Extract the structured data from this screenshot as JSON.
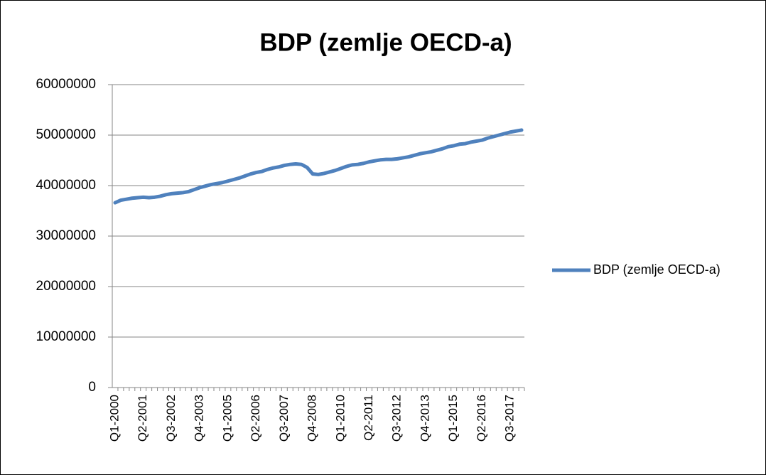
{
  "chart_data": {
    "type": "line",
    "title": "BDP (zemlje OECD-a)",
    "categories": [
      "Q1-2000",
      null,
      null,
      null,
      null,
      "Q2-2001",
      null,
      null,
      null,
      null,
      "Q3-2002",
      null,
      null,
      null,
      null,
      "Q4-2003",
      null,
      null,
      null,
      null,
      "Q1-2005",
      null,
      null,
      null,
      null,
      "Q2-2006",
      null,
      null,
      null,
      null,
      "Q3-2007",
      null,
      null,
      null,
      null,
      "Q4-2008",
      null,
      null,
      null,
      null,
      "Q1-2010",
      null,
      null,
      null,
      null,
      "Q2-2011",
      null,
      null,
      null,
      null,
      "Q3-2012",
      null,
      null,
      null,
      null,
      "Q4-2013",
      null,
      null,
      null,
      null,
      "Q1-2015",
      null,
      null,
      null,
      null,
      "Q2-2016",
      null,
      null,
      null,
      null,
      "Q3-2017",
      null,
      null
    ],
    "series": [
      {
        "name": "BDP (zemlje OECD-a)",
        "color": "#4f81bd",
        "values": [
          36600000,
          37100000,
          37300000,
          37500000,
          37600000,
          37700000,
          37600000,
          37700000,
          37900000,
          38200000,
          38400000,
          38500000,
          38600000,
          38800000,
          39200000,
          39600000,
          39900000,
          40200000,
          40400000,
          40600000,
          40900000,
          41200000,
          41500000,
          41900000,
          42300000,
          42600000,
          42800000,
          43200000,
          43500000,
          43700000,
          44000000,
          44200000,
          44300000,
          44200000,
          43600000,
          42300000,
          42200000,
          42400000,
          42700000,
          43000000,
          43400000,
          43800000,
          44100000,
          44200000,
          44400000,
          44700000,
          44900000,
          45100000,
          45200000,
          45200000,
          45300000,
          45500000,
          45700000,
          46000000,
          46300000,
          46500000,
          46700000,
          47000000,
          47300000,
          47700000,
          47900000,
          48200000,
          48300000,
          48600000,
          48800000,
          49000000,
          49400000,
          49700000,
          50000000,
          50300000,
          50600000,
          50800000,
          51000000
        ]
      }
    ],
    "ylim": [
      0,
      60000000
    ],
    "yticks": [
      0,
      10000000,
      20000000,
      30000000,
      40000000,
      50000000,
      60000000
    ],
    "grid": true,
    "legend": "right"
  }
}
